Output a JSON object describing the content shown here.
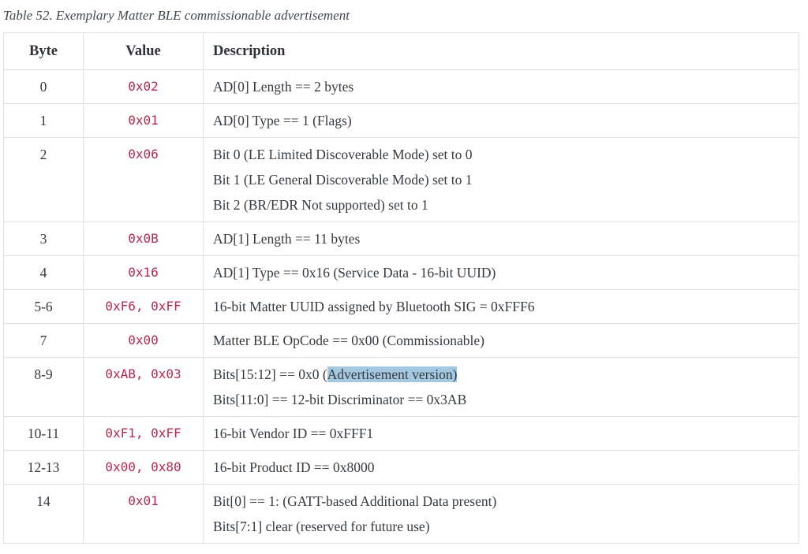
{
  "colors": {
    "page_bg": "#ffffff",
    "text": "#353a3f",
    "caption_text": "#43484e",
    "value_text": "#b52a50",
    "border": "#e0e0e0",
    "highlight_bg": "#a5c8e1"
  },
  "caption": "Table 52. Exemplary Matter BLE commissionable advertisement",
  "table": {
    "headers": [
      "Byte",
      "Value",
      "Description"
    ],
    "rows": [
      {
        "byte": "0",
        "value": "0x02",
        "description": [
          [
            {
              "text": "AD[0] Length == 2 bytes"
            }
          ]
        ]
      },
      {
        "byte": "1",
        "value": "0x01",
        "description": [
          [
            {
              "text": "AD[0] Type == 1 (Flags)"
            }
          ]
        ]
      },
      {
        "byte": "2",
        "value": "0x06",
        "description": [
          [
            {
              "text": "Bit 0 (LE Limited Discoverable Mode) set to 0"
            }
          ],
          [
            {
              "text": "Bit 1 (LE General Discoverable Mode) set to 1"
            }
          ],
          [
            {
              "text": "Bit 2 (BR/EDR Not supported) set to 1"
            }
          ]
        ]
      },
      {
        "byte": "3",
        "value": "0x0B",
        "description": [
          [
            {
              "text": "AD[1] Length == 11 bytes"
            }
          ]
        ]
      },
      {
        "byte": "4",
        "value": "0x16",
        "description": [
          [
            {
              "text": "AD[1] Type == 0x16 (Service Data - 16-bit UUID)"
            }
          ]
        ]
      },
      {
        "byte": "5-6",
        "value": "0xF6, 0xFF",
        "description": [
          [
            {
              "text": "16-bit Matter UUID assigned by Bluetooth SIG = 0xFFF6"
            }
          ]
        ]
      },
      {
        "byte": "7",
        "value": "0x00",
        "description": [
          [
            {
              "text": "Matter BLE OpCode == 0x00 (Commissionable)"
            }
          ]
        ]
      },
      {
        "byte": "8-9",
        "value": "0xAB, 0x03",
        "description": [
          [
            {
              "text": "Bits[15:12] == 0x0 ("
            },
            {
              "text": "Advertisement version)",
              "highlight": true
            }
          ],
          [
            {
              "text": "Bits[11:0] == 12-bit Discriminator == 0x3AB"
            }
          ]
        ]
      },
      {
        "byte": "10-11",
        "value": "0xF1, 0xFF",
        "description": [
          [
            {
              "text": "16-bit Vendor ID == 0xFFF1"
            }
          ]
        ]
      },
      {
        "byte": "12-13",
        "value": "0x00, 0x80",
        "description": [
          [
            {
              "text": "16-bit Product ID == 0x8000"
            }
          ]
        ]
      },
      {
        "byte": "14",
        "value": "0x01",
        "description": [
          [
            {
              "text": "Bit[0] == 1: (GATT-based Additional Data present)"
            }
          ],
          [
            {
              "text": "Bits[7:1] clear (reserved for future use)"
            }
          ]
        ]
      }
    ]
  }
}
